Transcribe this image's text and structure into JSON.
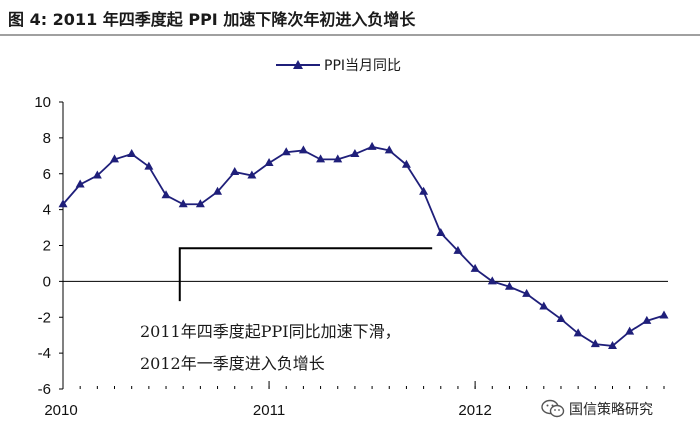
{
  "title": "图 4: 2011 年四季度起 PPI 加速下降次年初进入负增长",
  "legend": {
    "label": "PPI当月同比"
  },
  "annotation": {
    "line1": "2011年四季度起PPI同比加速下滑，",
    "line2": "2012年一季度进入负增长"
  },
  "watermark": {
    "text": "国信策略研究",
    "icon": "wechat-icon"
  },
  "colors": {
    "series": "#1f1f7a",
    "axis": "#000000",
    "bracket": "#000000"
  },
  "chart_data": {
    "type": "line",
    "series": [
      {
        "name": "PPI当月同比",
        "x": [
          "2010-01",
          "2010-02",
          "2010-03",
          "2010-04",
          "2010-05",
          "2010-06",
          "2010-07",
          "2010-08",
          "2010-09",
          "2010-10",
          "2010-11",
          "2010-12",
          "2011-01",
          "2011-02",
          "2011-03",
          "2011-04",
          "2011-05",
          "2011-06",
          "2011-07",
          "2011-08",
          "2011-09",
          "2011-10",
          "2011-11",
          "2011-12",
          "2012-01",
          "2012-02",
          "2012-03",
          "2012-04",
          "2012-05",
          "2012-06",
          "2012-07",
          "2012-08",
          "2012-09",
          "2012-10",
          "2012-11",
          "2012-12"
        ],
        "values": [
          4.3,
          5.4,
          5.9,
          6.8,
          7.1,
          6.4,
          4.8,
          4.3,
          4.3,
          5.0,
          6.1,
          5.9,
          6.6,
          7.2,
          7.3,
          6.8,
          6.8,
          7.1,
          7.5,
          7.3,
          6.5,
          5.0,
          2.7,
          1.7,
          0.7,
          0.0,
          -0.3,
          -0.7,
          -1.4,
          -2.1,
          -2.9,
          -3.5,
          -3.6,
          -2.8,
          -2.2,
          -1.9
        ]
      }
    ],
    "xticks": [
      "2010",
      "2011",
      "2012"
    ],
    "ylim": [
      -6,
      10
    ],
    "yticks": [
      "10",
      "8",
      "6",
      "4",
      "2",
      "0",
      "-2",
      "-4",
      "-6"
    ],
    "grid": false,
    "legend_position": "top-center"
  }
}
